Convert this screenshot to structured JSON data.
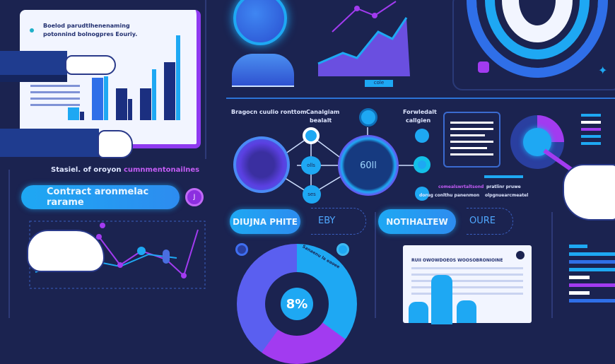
{
  "colors": {
    "background": "#1b2350",
    "cyan": "#1ea8f3",
    "blue": "#2f6fe8",
    "purple": "#a23bf0",
    "white": "#f2f5ff"
  },
  "report_card": {
    "heading_line1": "Boelod parudtlhenenaming",
    "heading_line2": "potonnind bolnogpres Eouriy.",
    "bars": [
      18,
      12,
      60,
      62,
      45,
      30,
      45,
      72,
      82,
      120
    ]
  },
  "caption": {
    "white": "Stasiel. of oroyon",
    "purple": "cumnmentonailnes"
  },
  "contract_pill": {
    "label": "Contract aronmelac rarame",
    "badge": "J"
  },
  "network": {
    "label_left": "Bragocn cuulio ronttom",
    "label_mid_1": "Canalgiam",
    "label_mid_2": "bealalt",
    "label_right_1": "Forwledalt",
    "label_right_2": "callgien",
    "hub_text": "60ll",
    "node_a": "olls",
    "node_b": "ses"
  },
  "side_notes": {
    "purple_1": "comealswrtaltsond",
    "white_1": "dorug conlthu panenmon",
    "white_2": "pratlinr pruwe",
    "white_3": "olpgnuearcmeatel"
  },
  "top_chart_label": "cole",
  "pills": [
    {
      "label": "DIUJNA PHITE",
      "secondary": "EBY"
    },
    {
      "label": "NOTIHALTEW",
      "secondary": "OURE"
    }
  ],
  "donut": {
    "center_label": "8%",
    "segment_label": "Sanaenu la eaoee",
    "segments": [
      {
        "color": "#1ea8f3",
        "value": 35
      },
      {
        "color": "#a23bf0",
        "value": 25
      },
      {
        "color": "#5a5ff0",
        "value": 40
      }
    ]
  },
  "document": {
    "title": "RUII OWOWDOEOS WOOSOBRONIOINE"
  }
}
